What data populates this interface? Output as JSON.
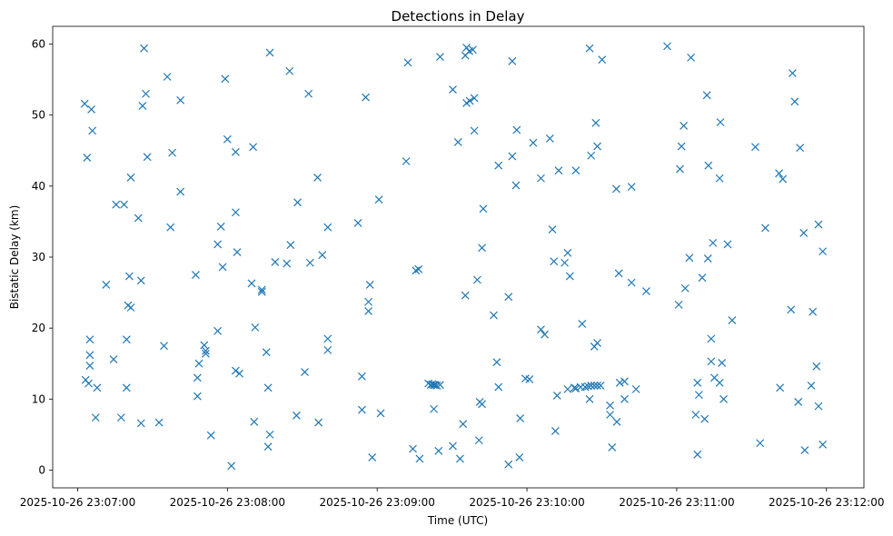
{
  "chart_data": {
    "type": "scatter",
    "title": "Detections in Delay",
    "xlabel": "Time (UTC)",
    "ylabel": "Bistatic Delay (km)",
    "marker": "x",
    "color": "#1f77b4",
    "grid": false,
    "xlim": [
      -10,
      315
    ],
    "ylim": [
      -2.5,
      62.5
    ],
    "x_ticks": [
      {
        "value": 0,
        "label": "2025-10-26 23:07:00"
      },
      {
        "value": 60,
        "label": "2025-10-26 23:08:00"
      },
      {
        "value": 120,
        "label": "2025-10-26 23:09:00"
      },
      {
        "value": 180,
        "label": "2025-10-26 23:10:00"
      },
      {
        "value": 240,
        "label": "2025-10-26 23:11:00"
      },
      {
        "value": 300,
        "label": "2025-10-26 23:12:00"
      }
    ],
    "y_ticks": [
      {
        "value": 0,
        "label": "0"
      },
      {
        "value": 10,
        "label": "10"
      },
      {
        "value": 20,
        "label": "20"
      },
      {
        "value": 30,
        "label": "30"
      },
      {
        "value": 40,
        "label": "40"
      },
      {
        "value": 50,
        "label": "50"
      },
      {
        "value": 60,
        "label": "60"
      }
    ],
    "points": [
      [
        2.8,
        51.6
      ],
      [
        3.8,
        44.0
      ],
      [
        3.2,
        12.7
      ],
      [
        4.4,
        12.2
      ],
      [
        4.9,
        18.4
      ],
      [
        4.9,
        16.2
      ],
      [
        4.9,
        14.7
      ],
      [
        5.5,
        50.8
      ],
      [
        5.9,
        47.8
      ],
      [
        7.8,
        11.6
      ],
      [
        7.2,
        7.4
      ],
      [
        11.4,
        26.1
      ],
      [
        14.4,
        15.6
      ],
      [
        15.4,
        37.4
      ],
      [
        17.4,
        7.4
      ],
      [
        18.6,
        37.4
      ],
      [
        19.6,
        18.4
      ],
      [
        19.6,
        11.6
      ],
      [
        20.2,
        23.2
      ],
      [
        20.7,
        27.3
      ],
      [
        21.3,
        41.2
      ],
      [
        21.3,
        22.9
      ],
      [
        24.3,
        35.5
      ],
      [
        25.4,
        6.6
      ],
      [
        25.4,
        26.7
      ],
      [
        26.0,
        51.3
      ],
      [
        26.6,
        59.4
      ],
      [
        27.3,
        53.0
      ],
      [
        27.9,
        44.1
      ],
      [
        32.6,
        6.7
      ],
      [
        34.6,
        17.5
      ],
      [
        35.9,
        55.4
      ],
      [
        37.2,
        34.2
      ],
      [
        37.9,
        44.7
      ],
      [
        41.2,
        39.2
      ],
      [
        41.2,
        52.1
      ],
      [
        47.3,
        27.5
      ],
      [
        48.0,
        13.0
      ],
      [
        48.0,
        10.4
      ],
      [
        48.6,
        15.0
      ],
      [
        50.7,
        17.6
      ],
      [
        51.3,
        16.8
      ],
      [
        51.3,
        16.4
      ],
      [
        53.4,
        4.9
      ],
      [
        56.1,
        19.6
      ],
      [
        56.1,
        31.8
      ],
      [
        57.4,
        34.3
      ],
      [
        58.1,
        28.6
      ],
      [
        59.1,
        55.1
      ],
      [
        60.0,
        46.6
      ],
      [
        61.6,
        0.6
      ],
      [
        63.3,
        14.0
      ],
      [
        63.3,
        36.3
      ],
      [
        63.3,
        44.8
      ],
      [
        63.9,
        30.7
      ],
      [
        64.8,
        13.6
      ],
      [
        69.7,
        26.3
      ],
      [
        70.3,
        45.5
      ],
      [
        71.1,
        20.1
      ],
      [
        70.7,
        6.8
      ],
      [
        73.8,
        25.4
      ],
      [
        73.8,
        25.1
      ],
      [
        75.6,
        16.6
      ],
      [
        76.3,
        11.6
      ],
      [
        76.3,
        3.3
      ],
      [
        77.0,
        58.8
      ],
      [
        77.0,
        5.0
      ],
      [
        79.1,
        29.3
      ],
      [
        83.8,
        29.1
      ],
      [
        84.9,
        56.2
      ],
      [
        85.3,
        31.7
      ],
      [
        87.7,
        7.7
      ],
      [
        88.1,
        37.7
      ],
      [
        91.0,
        13.8
      ],
      [
        92.5,
        53.0
      ],
      [
        93.1,
        29.2
      ],
      [
        96.5,
        6.7
      ],
      [
        96.1,
        41.2
      ],
      [
        98.0,
        30.3
      ],
      [
        100.2,
        18.5
      ],
      [
        100.2,
        16.9
      ],
      [
        100.2,
        34.2
      ],
      [
        112.3,
        34.8
      ],
      [
        113.9,
        13.2
      ],
      [
        113.9,
        8.5
      ],
      [
        115.4,
        52.5
      ],
      [
        116.5,
        23.7
      ],
      [
        116.5,
        22.4
      ],
      [
        117.1,
        26.1
      ],
      [
        118.0,
        1.8
      ],
      [
        120.7,
        38.1
      ],
      [
        121.4,
        8.0
      ],
      [
        131.6,
        43.5
      ],
      [
        132.3,
        57.4
      ],
      [
        134.3,
        3.0
      ],
      [
        135.5,
        28.1
      ],
      [
        136.6,
        28.3
      ],
      [
        137.0,
        1.6
      ],
      [
        140.5,
        12.2
      ],
      [
        141.5,
        12.0
      ],
      [
        142.1,
        12.1
      ],
      [
        142.7,
        12.0
      ],
      [
        142.7,
        8.6
      ],
      [
        143.3,
        12.0
      ],
      [
        143.9,
        11.9
      ],
      [
        144.6,
        2.7
      ],
      [
        145.2,
        58.2
      ],
      [
        145.2,
        12.0
      ],
      [
        150.3,
        53.6
      ],
      [
        150.3,
        3.4
      ],
      [
        152.4,
        46.2
      ],
      [
        153.2,
        1.6
      ],
      [
        154.4,
        6.5
      ],
      [
        155.3,
        24.6
      ],
      [
        155.3,
        58.4
      ],
      [
        155.8,
        59.5
      ],
      [
        155.8,
        51.7
      ],
      [
        156.9,
        59.0
      ],
      [
        157.1,
        52.0
      ],
      [
        158.3,
        59.2
      ],
      [
        158.9,
        47.8
      ],
      [
        158.9,
        52.4
      ],
      [
        160.1,
        26.8
      ],
      [
        160.8,
        4.2
      ],
      [
        161.1,
        9.6
      ],
      [
        162.0,
        9.3
      ],
      [
        162.0,
        31.3
      ],
      [
        162.5,
        36.8
      ],
      [
        166.7,
        21.8
      ],
      [
        167.9,
        15.2
      ],
      [
        168.6,
        42.9
      ],
      [
        168.6,
        11.7
      ],
      [
        172.6,
        0.8
      ],
      [
        172.6,
        24.4
      ],
      [
        174.1,
        44.2
      ],
      [
        174.1,
        57.6
      ],
      [
        175.6,
        40.1
      ],
      [
        175.9,
        47.9
      ],
      [
        177.0,
        1.8
      ],
      [
        177.3,
        7.3
      ],
      [
        179.4,
        12.9
      ],
      [
        181.0,
        12.8
      ],
      [
        182.5,
        46.1
      ],
      [
        185.6,
        41.1
      ],
      [
        185.6,
        19.8
      ],
      [
        187.1,
        19.1
      ],
      [
        189.2,
        46.7
      ],
      [
        190.2,
        33.9
      ],
      [
        190.8,
        29.4
      ],
      [
        191.4,
        5.5
      ],
      [
        192.1,
        10.5
      ],
      [
        192.7,
        42.2
      ],
      [
        195.1,
        29.2
      ],
      [
        196.3,
        30.6
      ],
      [
        196.3,
        11.4
      ],
      [
        197.2,
        27.3
      ],
      [
        199.0,
        11.6
      ],
      [
        199.6,
        42.2
      ],
      [
        199.6,
        11.5
      ],
      [
        201.5,
        11.7
      ],
      [
        202.1,
        20.6
      ],
      [
        203.3,
        11.7
      ],
      [
        204.5,
        11.8
      ],
      [
        205.1,
        59.4
      ],
      [
        205.1,
        10.0
      ],
      [
        205.7,
        11.9
      ],
      [
        205.7,
        44.3
      ],
      [
        207.0,
        11.9
      ],
      [
        207.0,
        17.4
      ],
      [
        207.6,
        48.9
      ],
      [
        208.2,
        11.9
      ],
      [
        208.2,
        17.9
      ],
      [
        208.2,
        45.6
      ],
      [
        209.5,
        11.9
      ],
      [
        210.1,
        57.8
      ],
      [
        213.3,
        9.1
      ],
      [
        213.3,
        7.8
      ],
      [
        214.1,
        3.2
      ],
      [
        215.8,
        39.6
      ],
      [
        216.0,
        6.8
      ],
      [
        216.8,
        27.7
      ],
      [
        217.2,
        12.3
      ],
      [
        219.1,
        10.0
      ],
      [
        219.1,
        12.5
      ],
      [
        221.9,
        26.4
      ],
      [
        221.9,
        39.9
      ],
      [
        223.7,
        11.4
      ],
      [
        227.8,
        25.2
      ],
      [
        236.2,
        59.7
      ],
      [
        240.8,
        23.3
      ],
      [
        241.3,
        42.4
      ],
      [
        241.9,
        45.6
      ],
      [
        242.8,
        48.5
      ],
      [
        243.4,
        25.6
      ],
      [
        245.1,
        29.9
      ],
      [
        245.7,
        58.1
      ],
      [
        247.6,
        7.8
      ],
      [
        248.3,
        2.2
      ],
      [
        248.3,
        12.3
      ],
      [
        248.9,
        10.6
      ],
      [
        250.2,
        27.1
      ],
      [
        251.2,
        7.2
      ],
      [
        252.1,
        52.8
      ],
      [
        252.5,
        29.8
      ],
      [
        252.7,
        42.9
      ],
      [
        253.8,
        15.3
      ],
      [
        253.8,
        18.5
      ],
      [
        254.5,
        32.0
      ],
      [
        255.1,
        13.0
      ],
      [
        257.2,
        12.3
      ],
      [
        257.2,
        41.1
      ],
      [
        257.5,
        49.0
      ],
      [
        258.1,
        15.1
      ],
      [
        258.8,
        10.0
      ],
      [
        260.4,
        31.8
      ],
      [
        262.2,
        21.1
      ],
      [
        271.5,
        45.5
      ],
      [
        273.4,
        3.8
      ],
      [
        275.5,
        34.1
      ],
      [
        281.0,
        41.8
      ],
      [
        281.4,
        11.6
      ],
      [
        282.5,
        41.0
      ],
      [
        285.8,
        22.6
      ],
      [
        286.4,
        55.9
      ],
      [
        287.3,
        51.9
      ],
      [
        288.7,
        9.6
      ],
      [
        289.4,
        45.4
      ],
      [
        290.9,
        33.4
      ],
      [
        291.3,
        2.8
      ],
      [
        293.9,
        11.9
      ],
      [
        294.5,
        22.3
      ],
      [
        296.0,
        14.6
      ],
      [
        296.8,
        34.6
      ],
      [
        296.8,
        9.0
      ],
      [
        298.5,
        30.8
      ],
      [
        298.5,
        3.6
      ]
    ]
  }
}
